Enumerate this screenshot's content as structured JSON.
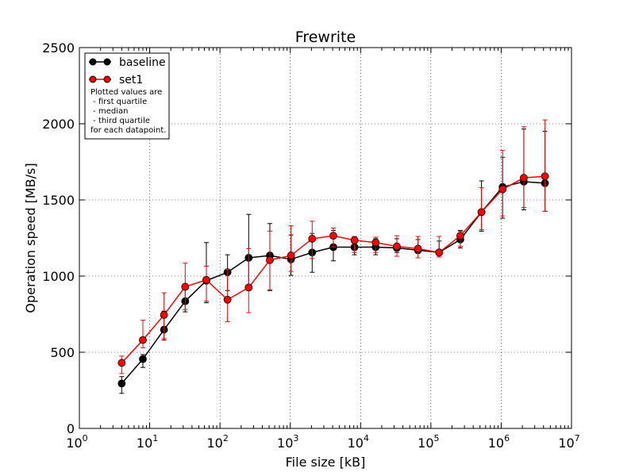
{
  "chart_data": {
    "type": "line",
    "title": "Frewrite",
    "xlabel": "File size [kB]",
    "ylabel": "Operation speed [MB/s]",
    "xscale": "log",
    "xlim": [
      1,
      10000000
    ],
    "ylim": [
      0,
      2500
    ],
    "xtick_exponents": [
      "0",
      "1",
      "2",
      "3",
      "4",
      "5",
      "6",
      "7"
    ],
    "xtick_base": "10",
    "ytick_labels": [
      "0",
      "500",
      "1000",
      "1500",
      "2000",
      "2500"
    ],
    "grid": true,
    "legend_position": "top-left",
    "legend_note": [
      "Plotted values are",
      " - first quartile",
      " - median",
      " - third quartile",
      "for each datapoint."
    ],
    "x": [
      4,
      8,
      16,
      32,
      64,
      128,
      256,
      512,
      1024,
      2048,
      4096,
      8192,
      16384,
      32768,
      65536,
      131072,
      262144,
      524288,
      1048576,
      2097152,
      4194304
    ],
    "series": [
      {
        "name": "baseline",
        "color": "#000000",
        "values": [
          295,
          455,
          648,
          835,
          970,
          1025,
          1120,
          1135,
          1110,
          1155,
          1190,
          1190,
          1190,
          1185,
          1170,
          1155,
          1240,
          1420,
          1585,
          1620,
          1610
        ],
        "q1": [
          230,
          400,
          580,
          765,
          825,
          905,
          925,
          905,
          1005,
          1025,
          1100,
          1140,
          1140,
          1155,
          1150,
          1125,
          1185,
          1295,
          1380,
          1435,
          1425
        ],
        "q3": [
          340,
          485,
          770,
          910,
          1220,
          1140,
          1405,
          1345,
          1270,
          1280,
          1300,
          1255,
          1245,
          1245,
          1240,
          1230,
          1300,
          1625,
          1780,
          1965,
          1950
        ]
      },
      {
        "name": "set1",
        "color": "#ff0000",
        "values": [
          430,
          580,
          745,
          930,
          975,
          845,
          925,
          1105,
          1135,
          1245,
          1265,
          1235,
          1220,
          1195,
          1180,
          1155,
          1265,
          1420,
          1570,
          1645,
          1655
        ],
        "q1": [
          360,
          530,
          590,
          780,
          835,
          700,
          760,
          910,
          1030,
          1115,
          1190,
          1155,
          1155,
          1130,
          1120,
          1125,
          1195,
          1305,
          1395,
          1450,
          1425
        ],
        "q3": [
          475,
          710,
          890,
          1085,
          1065,
          1045,
          1180,
          1295,
          1330,
          1360,
          1315,
          1260,
          1255,
          1265,
          1260,
          1260,
          1295,
          1580,
          1825,
          1980,
          2025
        ]
      }
    ]
  }
}
